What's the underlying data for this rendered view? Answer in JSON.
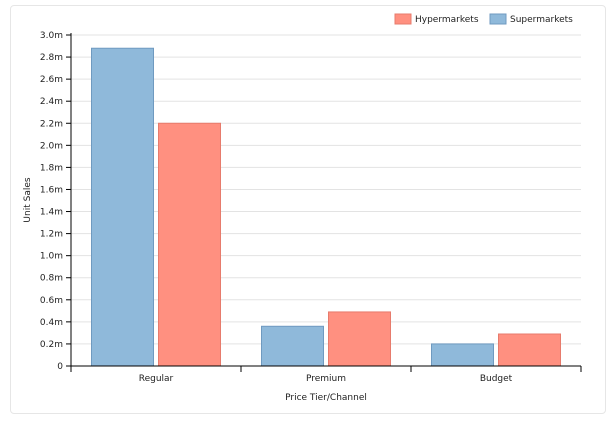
{
  "chart_data": {
    "type": "bar",
    "title": "",
    "xlabel": "Price Tier/Channel",
    "ylabel": "Unit Sales",
    "categories": [
      "Regular",
      "Premium",
      "Budget"
    ],
    "series": [
      {
        "name": "Supermarkets",
        "values": [
          2.88,
          0.36,
          0.2
        ],
        "color": "#8fb9da"
      },
      {
        "name": "Hypermarkets",
        "values": [
          2.2,
          0.49,
          0.29
        ],
        "color": "#ff9080"
      }
    ],
    "legend_order": [
      "Hypermarkets",
      "Supermarkets"
    ],
    "ylim": [
      0,
      3.0
    ],
    "yticks": [
      0,
      0.2,
      0.4,
      0.6,
      0.8,
      1.0,
      1.2,
      1.4,
      1.6,
      1.8,
      2.0,
      2.2,
      2.4,
      2.6,
      2.8,
      3.0
    ],
    "ytick_labels": [
      "0",
      "0.2m",
      "0.4m",
      "0.6m",
      "0.8m",
      "1.0m",
      "1.2m",
      "1.4m",
      "1.6m",
      "1.8m",
      "2.0m",
      "2.2m",
      "2.4m",
      "2.6m",
      "2.8m",
      "3.0m"
    ],
    "grid": true,
    "legend_position": "top-right"
  }
}
